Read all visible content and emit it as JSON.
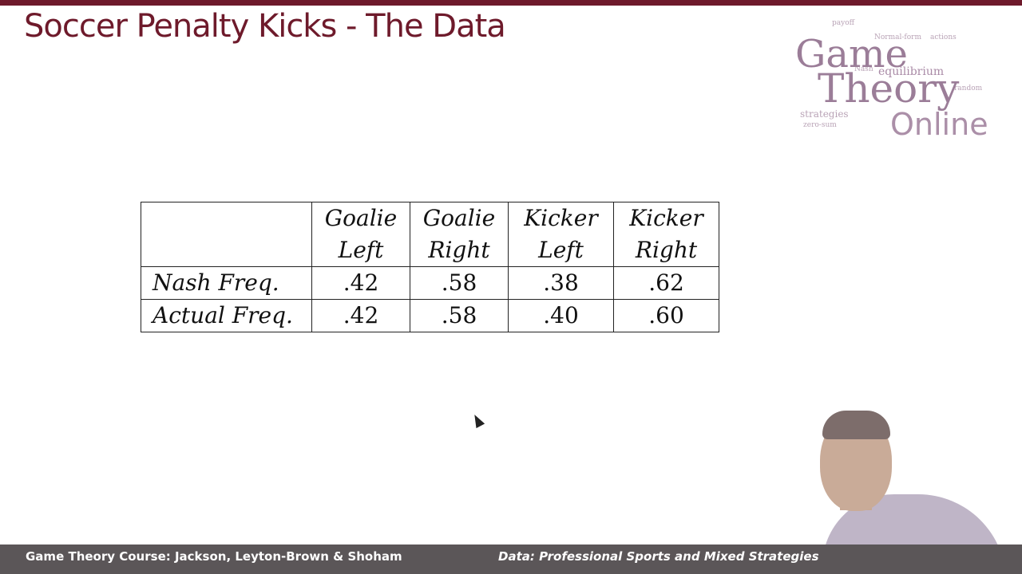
{
  "slide": {
    "title": "Soccer Penalty Kicks - The Data"
  },
  "logo": {
    "line1": "Game",
    "line2": "Theory",
    "line3": "Online",
    "words": [
      "payoff",
      "Normal-form",
      "actions",
      "equilibrium",
      "strategies",
      "zero-sum",
      "Nash",
      "random"
    ]
  },
  "table": {
    "headers": [
      {
        "top": "Goalie",
        "bottom": "Left"
      },
      {
        "top": "Goalie",
        "bottom": "Right"
      },
      {
        "top": "Kicker",
        "bottom": "Left"
      },
      {
        "top": "Kicker",
        "bottom": "Right"
      }
    ],
    "rows": [
      {
        "label": "Nash Freq.",
        "values": [
          ".42",
          ".58",
          ".38",
          ".62"
        ]
      },
      {
        "label": "Actual Freq.",
        "values": [
          ".42",
          ".58",
          ".40",
          ".60"
        ]
      }
    ]
  },
  "footer": {
    "left": "Game Theory Course: Jackson, Leyton-Brown & Shoham",
    "right": "Data: Professional Sports and Mixed Strategies"
  },
  "colors": {
    "accent": "#6e1a2b",
    "footer_bg": "#5b5658",
    "logo": "#9b7d98"
  }
}
